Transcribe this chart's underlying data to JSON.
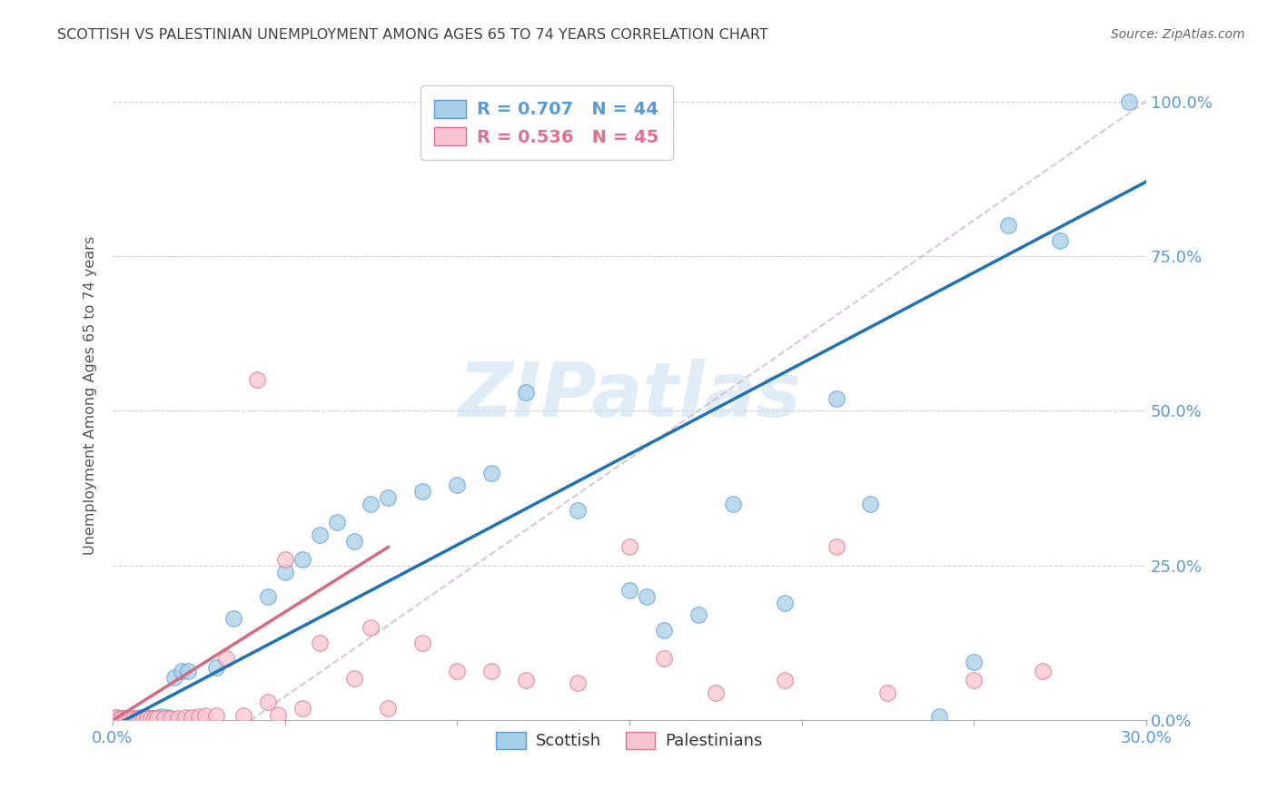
{
  "title": "SCOTTISH VS PALESTINIAN UNEMPLOYMENT AMONG AGES 65 TO 74 YEARS CORRELATION CHART",
  "source": "Source: ZipAtlas.com",
  "ylabel": "Unemployment Among Ages 65 to 74 years",
  "xlim": [
    0.0,
    0.3
  ],
  "ylim": [
    0.0,
    1.05
  ],
  "background_color": "#ffffff",
  "watermark_text": "ZIPatlas",
  "scottish_color": "#a8cfe8",
  "scottish_edge_color": "#5b9bd5",
  "palestinian_color": "#f9c5d0",
  "palestinian_edge_color": "#e07090",
  "scottish_line_color": "#2171b5",
  "palestinian_line_color": "#d46b82",
  "diag_line_color": "#ccbbcc",
  "scottish_R": 0.707,
  "scottish_N": 44,
  "palestinian_R": 0.536,
  "palestinian_N": 45,
  "scottish_x": [
    0.001,
    0.002,
    0.003,
    0.004,
    0.005,
    0.006,
    0.007,
    0.008,
    0.01,
    0.011,
    0.012,
    0.014,
    0.016,
    0.018,
    0.02,
    0.022,
    0.03,
    0.035,
    0.045,
    0.05,
    0.055,
    0.06,
    0.065,
    0.07,
    0.075,
    0.08,
    0.09,
    0.1,
    0.11,
    0.12,
    0.135,
    0.15,
    0.155,
    0.16,
    0.17,
    0.18,
    0.195,
    0.21,
    0.22,
    0.24,
    0.25,
    0.26,
    0.275,
    0.295
  ],
  "scottish_y": [
    0.005,
    0.003,
    0.004,
    0.003,
    0.002,
    0.004,
    0.003,
    0.005,
    0.005,
    0.004,
    0.003,
    0.006,
    0.005,
    0.07,
    0.08,
    0.08,
    0.085,
    0.165,
    0.2,
    0.24,
    0.26,
    0.3,
    0.32,
    0.29,
    0.35,
    0.36,
    0.37,
    0.38,
    0.4,
    0.53,
    0.34,
    0.21,
    0.2,
    0.145,
    0.17,
    0.35,
    0.19,
    0.52,
    0.35,
    0.007,
    0.095,
    0.8,
    0.775,
    1.0
  ],
  "palestinian_x": [
    0.001,
    0.002,
    0.003,
    0.004,
    0.005,
    0.006,
    0.007,
    0.008,
    0.009,
    0.01,
    0.011,
    0.012,
    0.013,
    0.015,
    0.017,
    0.019,
    0.021,
    0.023,
    0.025,
    0.027,
    0.03,
    0.033,
    0.038,
    0.042,
    0.045,
    0.048,
    0.05,
    0.055,
    0.06,
    0.07,
    0.075,
    0.08,
    0.09,
    0.1,
    0.11,
    0.12,
    0.135,
    0.15,
    0.16,
    0.175,
    0.195,
    0.21,
    0.225,
    0.25,
    0.27
  ],
  "palestinian_y": [
    0.005,
    0.004,
    0.003,
    0.004,
    0.003,
    0.003,
    0.004,
    0.003,
    0.003,
    0.004,
    0.003,
    0.004,
    0.003,
    0.003,
    0.004,
    0.004,
    0.005,
    0.005,
    0.006,
    0.008,
    0.008,
    0.1,
    0.008,
    0.55,
    0.03,
    0.01,
    0.26,
    0.02,
    0.125,
    0.068,
    0.15,
    0.02,
    0.125,
    0.08,
    0.08,
    0.065,
    0.06,
    0.28,
    0.1,
    0.045,
    0.065,
    0.28,
    0.045,
    0.065,
    0.08
  ],
  "grid_color": "#d0d0d0",
  "tick_color": "#5b9bd5",
  "title_color": "#404040",
  "legend_color_scottish": "#5b9bd5",
  "legend_color_palestinian": "#e07090",
  "source_color": "#666666",
  "ylabel_color": "#555555"
}
